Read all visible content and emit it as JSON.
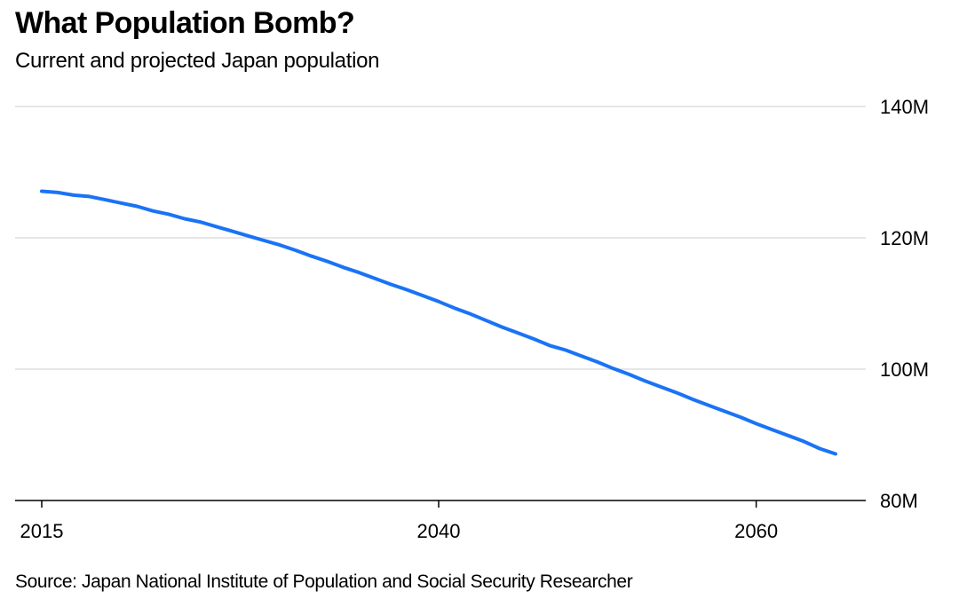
{
  "title": "What Population Bomb?",
  "subtitle": "Current and projected Japan population",
  "source": "Source: Japan National Institute of Population and Social Security Researcher",
  "colors": {
    "line": "#1a73f5",
    "grid": "#e6e6e6",
    "axis": "#000000"
  },
  "chart_data": {
    "type": "line",
    "title": "What Population Bomb?",
    "subtitle": "Current and projected Japan population",
    "xlabel": "",
    "ylabel": "",
    "xlim": [
      2011,
      2079
    ],
    "ylim": [
      80,
      140
    ],
    "y_unit": "M",
    "x_ticks": [
      2015,
      2040,
      2060
    ],
    "y_ticks": [
      80,
      100,
      120,
      140
    ],
    "x_tick_labels": [
      "2015",
      "2040",
      "2060"
    ],
    "y_tick_labels": [
      "80M",
      "100M",
      "120M",
      "140M"
    ],
    "grid": true,
    "legend": "none",
    "series": [
      {
        "x": [
          2015,
          2016,
          2017,
          2018,
          2019,
          2020,
          2021,
          2022,
          2023,
          2024,
          2025,
          2026,
          2027,
          2028,
          2029,
          2030,
          2031,
          2032,
          2033,
          2034,
          2035,
          2036,
          2037,
          2038,
          2039,
          2040,
          2041,
          2042,
          2043,
          2044,
          2045,
          2046,
          2047,
          2048,
          2049,
          2050,
          2051,
          2052,
          2053,
          2054,
          2055,
          2056,
          2057,
          2058,
          2059,
          2060,
          2061,
          2062,
          2063,
          2064,
          2065
        ],
        "values": [
          127.1,
          126.9,
          126.5,
          126.3,
          125.8,
          125.3,
          124.8,
          124.1,
          123.6,
          122.9,
          122.4,
          121.7,
          121.0,
          120.3,
          119.6,
          118.9,
          118.1,
          117.2,
          116.4,
          115.5,
          114.7,
          113.8,
          112.9,
          112.1,
          111.2,
          110.3,
          109.3,
          108.4,
          107.4,
          106.4,
          105.5,
          104.6,
          103.6,
          102.9,
          102.0,
          101.1,
          100.1,
          99.2,
          98.2,
          97.3,
          96.4,
          95.4,
          94.5,
          93.6,
          92.7,
          91.7,
          90.8,
          89.9,
          89.0,
          87.9,
          87.1
        ]
      }
    ]
  }
}
